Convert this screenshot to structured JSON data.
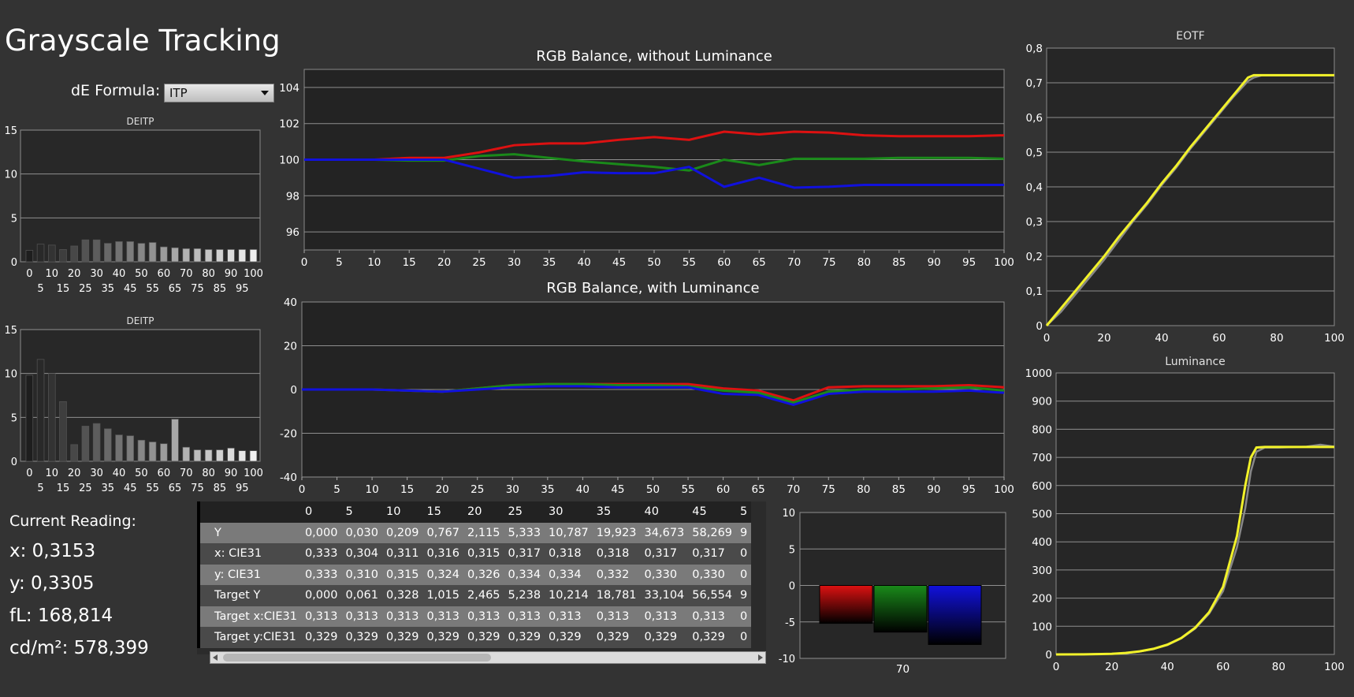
{
  "page_title": "Grayscale Tracking",
  "de_formula": {
    "label": "dE Formula:",
    "selected": "ITP"
  },
  "current_reading": {
    "title": "Current Reading:",
    "x": "x: 0,3153",
    "y": "y: 0,3305",
    "fl": "fL: 168,814",
    "cdm2": "cd/m²: 578,399"
  },
  "colors": {
    "red": "#dd1111",
    "green": "#1a8a1a",
    "blue": "#1111dd",
    "yellow": "#f2f22a",
    "gray_ref": "#888888"
  },
  "table": {
    "columns": [
      "0",
      "5",
      "10",
      "15",
      "20",
      "25",
      "30",
      "35",
      "40",
      "45",
      "5"
    ],
    "rows": [
      {
        "label": "Y",
        "values": [
          "0,000",
          "0,030",
          "0,209",
          "0,767",
          "2,115",
          "5,333",
          "10,787",
          "19,923",
          "34,673",
          "58,269",
          "9"
        ]
      },
      {
        "label": "x: CIE31",
        "values": [
          "0,333",
          "0,304",
          "0,311",
          "0,316",
          "0,315",
          "0,317",
          "0,318",
          "0,318",
          "0,317",
          "0,317",
          "0"
        ]
      },
      {
        "label": "y: CIE31",
        "values": [
          "0,333",
          "0,310",
          "0,315",
          "0,324",
          "0,326",
          "0,334",
          "0,334",
          "0,332",
          "0,330",
          "0,330",
          "0"
        ]
      },
      {
        "label": "Target Y",
        "values": [
          "0,000",
          "0,061",
          "0,328",
          "1,015",
          "2,465",
          "5,238",
          "10,214",
          "18,781",
          "33,104",
          "56,554",
          "9"
        ]
      },
      {
        "label": "Target x:CIE31",
        "values": [
          "0,313",
          "0,313",
          "0,313",
          "0,313",
          "0,313",
          "0,313",
          "0,313",
          "0,313",
          "0,313",
          "0,313",
          "0"
        ]
      },
      {
        "label": "Target y:CIE31",
        "values": [
          "0,329",
          "0,329",
          "0,329",
          "0,329",
          "0,329",
          "0,329",
          "0,329",
          "0,329",
          "0,329",
          "0,329",
          "0"
        ]
      }
    ]
  },
  "chart_data": [
    {
      "type": "bar",
      "title": "DEITP",
      "ylim": [
        0,
        15
      ],
      "yticks": [
        0,
        5,
        10,
        15
      ],
      "categories": [
        0,
        5,
        10,
        15,
        20,
        25,
        30,
        35,
        40,
        45,
        50,
        55,
        60,
        65,
        70,
        75,
        80,
        85,
        90,
        95,
        100
      ],
      "values": [
        1.3,
        2.0,
        1.9,
        1.4,
        1.8,
        2.5,
        2.5,
        2.1,
        2.3,
        2.3,
        2.1,
        2.2,
        1.7,
        1.6,
        1.5,
        1.5,
        1.4,
        1.4,
        1.4,
        1.4,
        1.4
      ],
      "xticks_top": [
        "0",
        "10",
        "20",
        "30",
        "40",
        "50",
        "60",
        "70",
        "80",
        "90",
        "100"
      ],
      "xticks_bottom": [
        "5",
        "15",
        "25",
        "35",
        "45",
        "55",
        "65",
        "75",
        "85",
        "95"
      ]
    },
    {
      "type": "bar",
      "title": "DEITP",
      "ylim": [
        0,
        15
      ],
      "yticks": [
        0,
        5,
        10,
        15
      ],
      "categories": [
        0,
        5,
        10,
        15,
        20,
        25,
        30,
        35,
        40,
        45,
        50,
        55,
        60,
        65,
        70,
        75,
        80,
        85,
        90,
        95,
        100
      ],
      "values": [
        9.8,
        11.6,
        10.0,
        6.8,
        1.9,
        4.0,
        4.3,
        3.7,
        3.0,
        2.9,
        2.4,
        2.2,
        2.0,
        4.8,
        1.6,
        1.3,
        1.3,
        1.3,
        1.5,
        1.2,
        1.2
      ],
      "xticks_top": [
        "0",
        "10",
        "20",
        "30",
        "40",
        "50",
        "60",
        "70",
        "80",
        "90",
        "100"
      ],
      "xticks_bottom": [
        "5",
        "15",
        "25",
        "35",
        "45",
        "55",
        "65",
        "75",
        "85",
        "95"
      ]
    },
    {
      "type": "line",
      "title": "RGB Balance, without Luminance",
      "xlim": [
        0,
        100
      ],
      "ylim": [
        95,
        105
      ],
      "yticks": [
        96,
        98,
        100,
        102,
        104
      ],
      "x": [
        0,
        5,
        10,
        15,
        20,
        25,
        30,
        35,
        40,
        45,
        50,
        55,
        60,
        65,
        70,
        75,
        80,
        85,
        90,
        95,
        100
      ],
      "series": [
        {
          "color": "red",
          "values": [
            100,
            100,
            100,
            100.1,
            100.1,
            100.4,
            100.8,
            100.9,
            100.9,
            101.1,
            101.25,
            101.1,
            101.55,
            101.4,
            101.55,
            101.5,
            101.35,
            101.3,
            101.3,
            101.3,
            101.35
          ]
        },
        {
          "color": "green",
          "values": [
            100,
            100,
            100,
            99.95,
            99.95,
            100.2,
            100.3,
            100.1,
            99.9,
            99.75,
            99.6,
            99.4,
            100.0,
            99.7,
            100.05,
            100.05,
            100.05,
            100.1,
            100.1,
            100.1,
            100.05
          ]
        },
        {
          "color": "blue",
          "values": [
            100,
            100,
            100,
            100,
            100,
            99.5,
            99.0,
            99.1,
            99.3,
            99.25,
            99.25,
            99.6,
            98.5,
            99.0,
            98.45,
            98.5,
            98.6,
            98.6,
            98.6,
            98.6,
            98.6
          ]
        }
      ]
    },
    {
      "type": "line",
      "title": "RGB Balance, with Luminance",
      "xlim": [
        0,
        100
      ],
      "ylim": [
        -40,
        40
      ],
      "yticks": [
        -40,
        -20,
        0,
        20,
        40
      ],
      "x": [
        0,
        5,
        10,
        15,
        20,
        25,
        30,
        35,
        40,
        45,
        50,
        55,
        60,
        65,
        70,
        75,
        80,
        85,
        90,
        95,
        100
      ],
      "series": [
        {
          "color": "red",
          "values": [
            0,
            0,
            0,
            -0.5,
            -1,
            0.5,
            2,
            2.5,
            2.5,
            2.5,
            2.5,
            2.5,
            0.5,
            -0.5,
            -5,
            1,
            1.5,
            1.5,
            1.5,
            2,
            1
          ]
        },
        {
          "color": "green",
          "values": [
            0,
            0,
            0,
            -0.5,
            -1,
            0.5,
            2,
            2.5,
            2.5,
            2,
            2,
            1.5,
            -0.5,
            -1.5,
            -6,
            -1,
            0,
            0,
            0.5,
            1,
            -0.5
          ]
        },
        {
          "color": "blue",
          "values": [
            0,
            0,
            0,
            -0.5,
            -1,
            0,
            1,
            1.5,
            1.5,
            1,
            1,
            1,
            -2,
            -2.5,
            -7,
            -2,
            -1,
            -1,
            -1,
            -0.5,
            -1.5
          ]
        }
      ]
    },
    {
      "type": "bar",
      "title": "",
      "ylim": [
        -10,
        10
      ],
      "yticks": [
        -10,
        -5,
        0,
        5,
        10
      ],
      "categories": [
        "70"
      ],
      "series": [
        {
          "color": "red",
          "values": [
            -5.2
          ]
        },
        {
          "color": "green",
          "values": [
            -6.4
          ]
        },
        {
          "color": "blue",
          "values": [
            -8.1
          ]
        }
      ]
    },
    {
      "type": "line",
      "title": "EOTF",
      "xlim": [
        0,
        100
      ],
      "ylim": [
        0,
        0.8
      ],
      "yticks": [
        "0",
        "0,1",
        "0,2",
        "0,3",
        "0,4",
        "0,5",
        "0,6",
        "0,7",
        "0,8"
      ],
      "xticks": [
        0,
        20,
        40,
        60,
        80,
        100
      ],
      "x": [
        0,
        5,
        10,
        15,
        20,
        25,
        30,
        35,
        40,
        45,
        50,
        55,
        60,
        65,
        70,
        72,
        75,
        80,
        90,
        100
      ],
      "series": [
        {
          "color": "gray_ref",
          "values": [
            0,
            0.04,
            0.09,
            0.14,
            0.19,
            0.245,
            0.3,
            0.35,
            0.405,
            0.455,
            0.51,
            0.56,
            0.61,
            0.66,
            0.705,
            0.715,
            0.722,
            0.722,
            0.722,
            0.722
          ]
        },
        {
          "color": "yellow",
          "values": [
            0,
            0.05,
            0.1,
            0.15,
            0.2,
            0.255,
            0.305,
            0.355,
            0.41,
            0.46,
            0.515,
            0.565,
            0.615,
            0.665,
            0.715,
            0.722,
            0.722,
            0.722,
            0.722,
            0.722
          ]
        }
      ]
    },
    {
      "type": "line",
      "title": "Luminance",
      "xlim": [
        0,
        100
      ],
      "ylim": [
        0,
        1000
      ],
      "yticks": [
        0,
        100,
        200,
        300,
        400,
        500,
        600,
        700,
        800,
        900,
        1000
      ],
      "xticks": [
        0,
        20,
        40,
        60,
        80,
        100
      ],
      "x": [
        0,
        10,
        20,
        25,
        30,
        35,
        40,
        45,
        50,
        55,
        60,
        65,
        68,
        70,
        72,
        75,
        80,
        90,
        95,
        100
      ],
      "series": [
        {
          "color": "gray_ref",
          "values": [
            0,
            0.2,
            2.5,
            5,
            10,
            19,
            33,
            57,
            92,
            145,
            225,
            380,
            520,
            650,
            720,
            735,
            735,
            738,
            745,
            738
          ]
        },
        {
          "color": "yellow",
          "values": [
            0,
            0.2,
            2.1,
            5.3,
            10.8,
            19.9,
            34.7,
            58.3,
            95,
            150,
            240,
            420,
            600,
            700,
            735,
            737,
            737,
            737,
            737,
            737
          ]
        }
      ]
    }
  ]
}
